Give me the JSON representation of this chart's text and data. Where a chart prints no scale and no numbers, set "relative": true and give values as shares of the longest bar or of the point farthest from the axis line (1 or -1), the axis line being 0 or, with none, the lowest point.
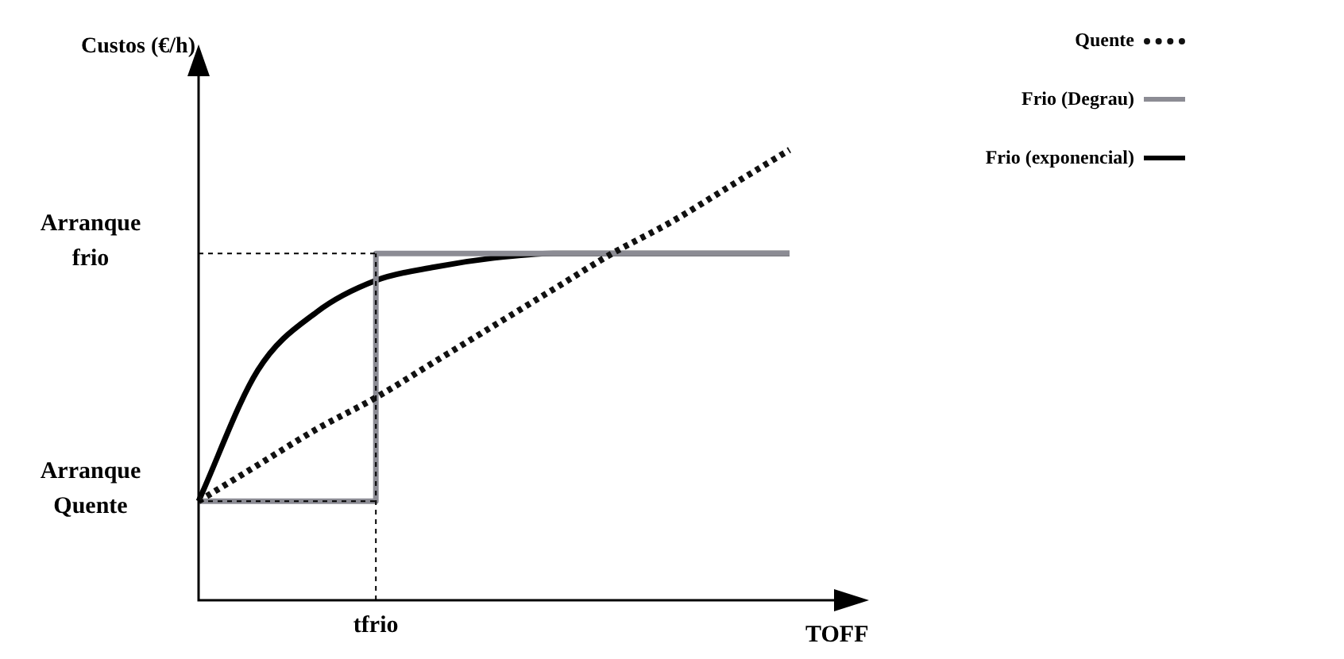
{
  "chart_data": {
    "type": "line",
    "xlabel": "TOFF",
    "ylabel": "Custos (€/h)",
    "relative": true,
    "categories": [
      null,
      null,
      null,
      null,
      null,
      null,
      null,
      null,
      null,
      null,
      null
    ],
    "annotations": [
      "tfrio"
    ],
    "series": [
      {
        "name": "Quente",
        "color": "#111111",
        "line_style": "dotted",
        "values": [
          0.22,
          0.3,
          0.38,
          0.45,
          0.53,
          0.61,
          0.69,
          0.77,
          0.84,
          0.92,
          1.0
        ]
      },
      {
        "name": "Frio (Degrau)",
        "type": "step",
        "color": "#8c8c94",
        "line_style": "solid",
        "values": [
          0.22,
          0.22,
          0.22,
          0.77,
          0.77,
          0.77,
          0.77,
          0.77,
          0.77,
          0.77,
          0.77
        ]
      },
      {
        "name": "Frio (exponencial)",
        "color": "#000000",
        "line_style": "solid",
        "values": [
          0.22,
          0.51,
          0.64,
          0.71,
          0.74,
          0.76,
          0.77,
          0.77,
          0.77,
          0.77,
          0.77
        ]
      }
    ],
    "ref_lines": [
      {
        "axis": "y",
        "value": 0.77,
        "label": "Arranque frio",
        "line_style": "dotted",
        "color": "#000000"
      },
      {
        "axis": "y",
        "value": 0.22,
        "label": "Arranque Quente",
        "line_style": "dotted",
        "color": "#000000"
      }
    ],
    "grid": false,
    "marker": "none",
    "legend": "top right"
  }
}
